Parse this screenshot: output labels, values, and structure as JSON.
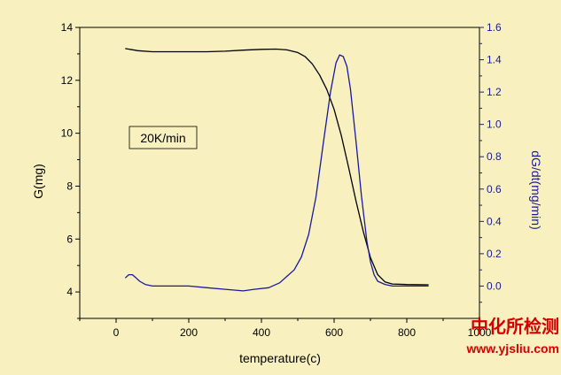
{
  "chart_data": {
    "type": "line",
    "xlabel": "temperature(c)",
    "ylabel_left": "G(mg)",
    "ylabel_right": "dG/dt(mg/min)",
    "xlim": [
      -100,
      1000
    ],
    "ylim_left": [
      3,
      14
    ],
    "ylim_right": [
      -0.2,
      1.6
    ],
    "x_ticks": [
      0,
      200,
      400,
      600,
      800,
      1000
    ],
    "y_left_ticks": [
      4,
      6,
      8,
      10,
      12,
      14
    ],
    "y_right_ticks": [
      0.0,
      0.2,
      0.4,
      0.6,
      0.8,
      1.0,
      1.2,
      1.4,
      1.6
    ],
    "annotation": "20K/min",
    "grid": false,
    "colors": {
      "background": "#f8f0bf",
      "plot": "#f8f0bf",
      "axes": "#000000",
      "right_axis": "#1a1a8c",
      "series_G": "#000000",
      "series_dGdt": "#1a1aa0"
    },
    "series": [
      {
        "axis": "left",
        "x": [
          25,
          60,
          100,
          150,
          200,
          250,
          300,
          350,
          400,
          440,
          470,
          500,
          520,
          540,
          560,
          580,
          600,
          620,
          640,
          660,
          680,
          700,
          720,
          740,
          760,
          800,
          860
        ],
        "values": [
          13.2,
          13.12,
          13.08,
          13.08,
          13.08,
          13.08,
          13.1,
          13.14,
          13.17,
          13.18,
          13.15,
          13.05,
          12.9,
          12.62,
          12.2,
          11.65,
          10.9,
          9.9,
          8.7,
          7.45,
          6.3,
          5.3,
          4.65,
          4.38,
          4.3,
          4.28,
          4.27
        ]
      },
      {
        "axis": "right",
        "x": [
          25,
          35,
          45,
          55,
          65,
          80,
          100,
          150,
          200,
          250,
          300,
          350,
          380,
          420,
          450,
          470,
          490,
          510,
          530,
          550,
          570,
          590,
          605,
          615,
          625,
          635,
          645,
          660,
          675,
          690,
          700,
          710,
          720,
          740,
          760,
          800,
          860
        ],
        "values": [
          0.05,
          0.07,
          0.07,
          0.05,
          0.03,
          0.01,
          0.0,
          0.0,
          0.0,
          -0.01,
          -0.02,
          -0.03,
          -0.02,
          -0.01,
          0.02,
          0.06,
          0.1,
          0.18,
          0.32,
          0.55,
          0.88,
          1.2,
          1.38,
          1.43,
          1.42,
          1.36,
          1.22,
          0.9,
          0.56,
          0.28,
          0.15,
          0.07,
          0.03,
          0.01,
          0.0,
          0.0,
          0.0
        ]
      }
    ]
  },
  "watermark": {
    "main": "中化所检测",
    "url": "www.yjsliu.com"
  }
}
